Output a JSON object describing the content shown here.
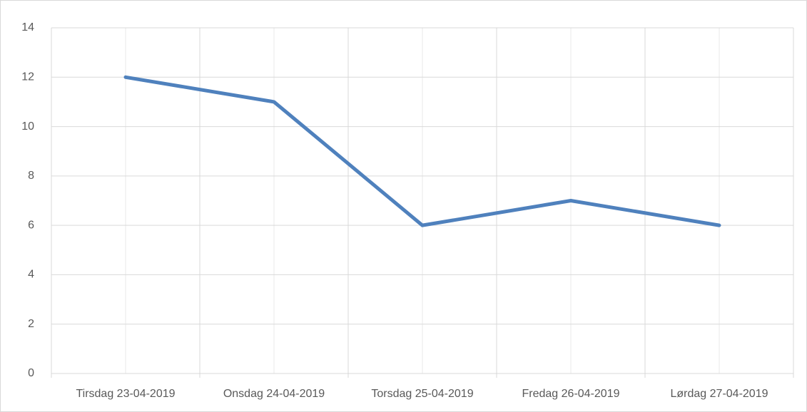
{
  "chart_data": {
    "type": "line",
    "categories": [
      "Tirsdag 23-04-2019",
      "Onsdag 24-04-2019",
      "Torsdag 25-04-2019",
      "Fredag 26-04-2019",
      "Lørdag 27-04-2019"
    ],
    "values": [
      12,
      11,
      6,
      7,
      6
    ],
    "color": "#4f81bd",
    "ylim": [
      0,
      14
    ],
    "yticks": [
      0,
      2,
      4,
      6,
      8,
      10,
      12,
      14
    ],
    "grid": true
  }
}
